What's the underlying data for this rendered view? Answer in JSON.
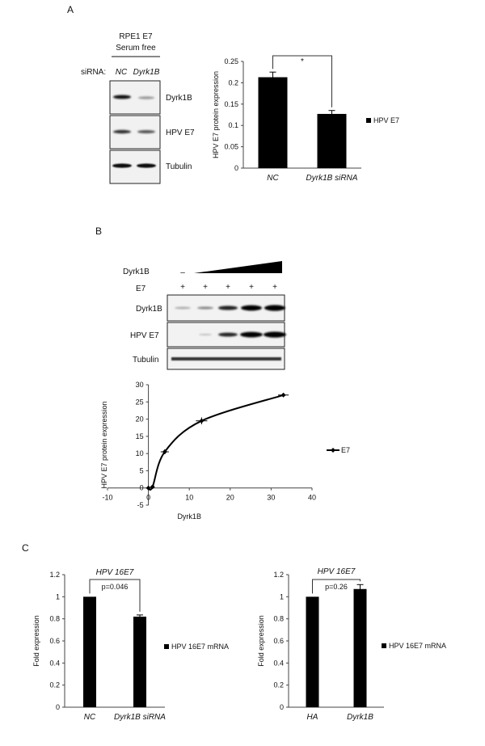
{
  "panels": {
    "A": {
      "letter": "A",
      "blot": {
        "header_line1": "RPE1 E7",
        "header_line2": "Serum free",
        "sirna_label": "siRNA:",
        "lanes": [
          "NC",
          "Dyrk1B"
        ],
        "rows": [
          "Dyrk1B",
          "HPV E7",
          "Tubulin"
        ]
      }
    },
    "B": {
      "letter": "B",
      "blot": {
        "treatment_label": "Dyrk1B",
        "e7_label": "E7",
        "minus_sign": "–",
        "plus_sign": "+",
        "rows": [
          "Dyrk1B",
          "HPV E7",
          "Tubulin"
        ]
      }
    },
    "C": {
      "letter": "C"
    }
  },
  "chart_data": [
    {
      "id": "A-bar",
      "type": "bar",
      "categories": [
        "NC",
        "Dyrk1B siRNA"
      ],
      "series": [
        {
          "name": "HPV E7",
          "values": [
            0.213,
            0.127
          ],
          "errors": [
            0.012,
            0.008
          ]
        }
      ],
      "ylabel": "HPV E7 protein expression",
      "ylim": [
        0,
        0.25
      ],
      "yticks": [
        "0",
        "0.05",
        "0.1",
        "0.15",
        "0.2",
        "0.25"
      ],
      "significance": "*",
      "legend": "right",
      "color": "#000000"
    },
    {
      "id": "B-scatter",
      "type": "line",
      "x": [
        0,
        1,
        4,
        13,
        33
      ],
      "y": [
        0,
        0.3,
        10.5,
        19.5,
        27
      ],
      "xerr": [
        0.4,
        0.4,
        1.0,
        1.4,
        1.3
      ],
      "yerr": [
        0.3,
        0.3,
        0.7,
        1.0,
        0.5
      ],
      "series_name": "E7",
      "xlabel": "Dyrk1B",
      "ylabel": "HPV E7 protein expression",
      "xlim": [
        -10,
        40
      ],
      "ylim": [
        -5,
        30
      ],
      "xticks": [
        "-10",
        "0",
        "10",
        "20",
        "30",
        "40"
      ],
      "yticks": [
        "-5",
        "0",
        "5",
        "10",
        "15",
        "20",
        "25",
        "30"
      ],
      "legend": "right",
      "color": "#000000"
    },
    {
      "id": "C-bar-left",
      "type": "bar",
      "title": "HPV 16E7",
      "categories": [
        "NC",
        "Dyrk1B siRNA"
      ],
      "series": [
        {
          "name": "HPV 16E7 mRNA",
          "values": [
            1.0,
            0.82
          ],
          "errors": [
            0,
            0.015
          ]
        }
      ],
      "ylabel": "Fold expression",
      "ylim": [
        0,
        1.2
      ],
      "yticks": [
        "0",
        "0.2",
        "0.4",
        "0.6",
        "0.8",
        "1",
        "1.2"
      ],
      "significance": "p=0.046",
      "legend": "right",
      "color": "#000000"
    },
    {
      "id": "C-bar-right",
      "type": "bar",
      "title": "HPV 16E7",
      "categories": [
        "HA",
        "Dyrk1B"
      ],
      "series": [
        {
          "name": "HPV 16E7 mRNA",
          "values": [
            1.0,
            1.07
          ],
          "errors": [
            0,
            0.04
          ]
        }
      ],
      "ylabel": "Fold expression",
      "ylim": [
        0,
        1.2
      ],
      "yticks": [
        "0",
        "0.2",
        "0.4",
        "0.6",
        "0.8",
        "1",
        "1.2"
      ],
      "significance": "p=0.26",
      "legend": "right",
      "color": "#000000"
    }
  ]
}
